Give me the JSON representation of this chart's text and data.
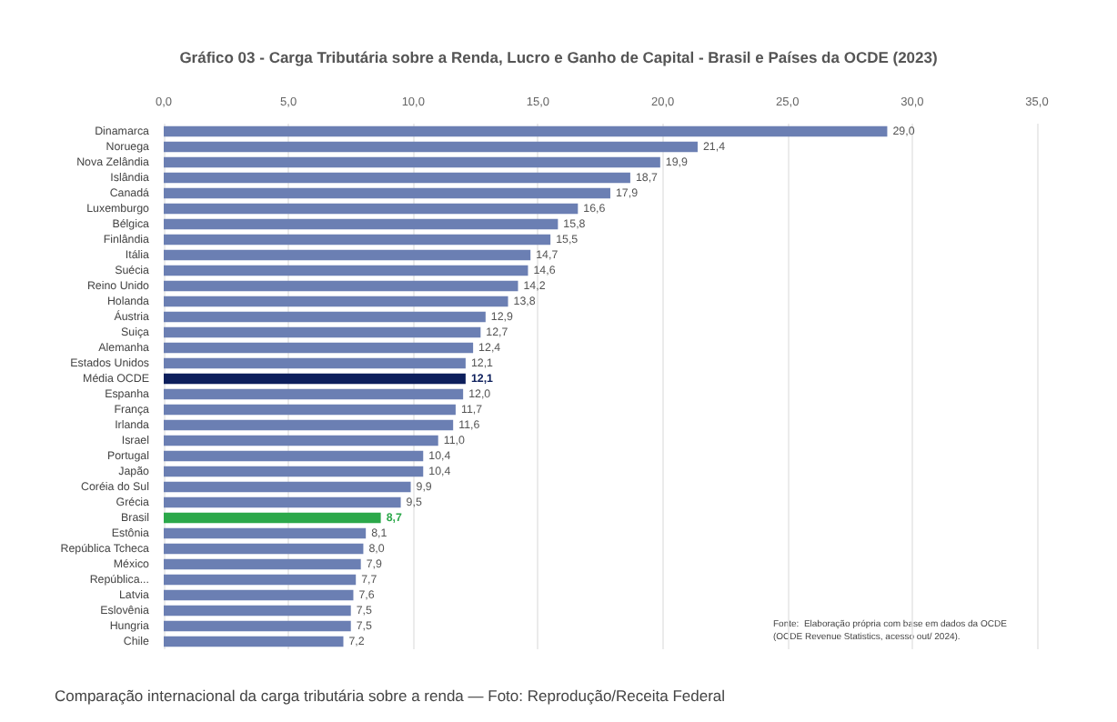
{
  "chart_data": {
    "type": "bar",
    "orientation": "horizontal",
    "title": "Gráfico 03 - Carga Tributária sobre a Renda, Lucro e Ganho de Capital - Brasil e Países da OCDE (2023)",
    "categories": [
      "Dinamarca",
      "Noruega",
      "Nova Zelândia",
      "Islândia",
      "Canadá",
      "Luxemburgo",
      "Bélgica",
      "Finlândia",
      "Itália",
      "Suécia",
      "Reino Unido",
      "Holanda",
      "Áustria",
      "Suiça",
      "Alemanha",
      "Estados Unidos",
      "Média OCDE",
      "Espanha",
      "França",
      "Irlanda",
      "Israel",
      "Portugal",
      "Japão",
      "Coréia do Sul",
      "Grécia",
      "Brasil",
      "Estônia",
      "República Tcheca",
      "México",
      "República...",
      "Latvia",
      "Eslovênia",
      "Hungria",
      "Chile"
    ],
    "values": [
      29.0,
      21.4,
      19.9,
      18.7,
      17.9,
      16.6,
      15.8,
      15.5,
      14.7,
      14.6,
      14.2,
      13.8,
      12.9,
      12.7,
      12.4,
      12.1,
      12.1,
      12.0,
      11.7,
      11.6,
      11.0,
      10.4,
      10.4,
      9.9,
      9.5,
      8.7,
      8.1,
      8.0,
      7.9,
      7.7,
      7.6,
      7.5,
      7.5,
      7.2
    ],
    "colors": [
      "#6b7fb3",
      "#6b7fb3",
      "#6b7fb3",
      "#6b7fb3",
      "#6b7fb3",
      "#6b7fb3",
      "#6b7fb3",
      "#6b7fb3",
      "#6b7fb3",
      "#6b7fb3",
      "#6b7fb3",
      "#6b7fb3",
      "#6b7fb3",
      "#6b7fb3",
      "#6b7fb3",
      "#6b7fb3",
      "#0d1f5c",
      "#6b7fb3",
      "#6b7fb3",
      "#6b7fb3",
      "#6b7fb3",
      "#6b7fb3",
      "#6b7fb3",
      "#6b7fb3",
      "#6b7fb3",
      "#2ba84a",
      "#6b7fb3",
      "#6b7fb3",
      "#6b7fb3",
      "#6b7fb3",
      "#6b7fb3",
      "#6b7fb3",
      "#6b7fb3",
      "#6b7fb3"
    ],
    "xlim": [
      0,
      35
    ],
    "xticks": [
      {
        "value": 0,
        "label": "0,0"
      },
      {
        "value": 5,
        "label": "5,0"
      },
      {
        "value": 10,
        "label": "10,0"
      },
      {
        "value": 15,
        "label": "15,0"
      },
      {
        "value": 20,
        "label": "20,0"
      },
      {
        "value": 25,
        "label": "25,0"
      },
      {
        "value": 30,
        "label": "30,0"
      },
      {
        "value": 35,
        "label": "35,0"
      }
    ],
    "value_labels": [
      "29,0",
      "21,4",
      "19,9",
      "18,7",
      "17,9",
      "16,6",
      "15,8",
      "15,5",
      "14,7",
      "14,6",
      "14,2",
      "13,8",
      "12,9",
      "12,7",
      "12,4",
      "12,1",
      "12,1",
      "12,0",
      "11,7",
      "11,6",
      "11,0",
      "10,4",
      "10,4",
      "9,9",
      "9,5",
      "8,7",
      "8,1",
      "8,0",
      "7,9",
      "7,7",
      "7,6",
      "7,5",
      "7,5",
      "7,2"
    ],
    "grid": "x",
    "annotations": [
      "Fonte:  Elaboração própria com base em dados da OCDE (OCDE Revenue Statistics, acesso out/ 2024).",
      "Comparação internacional da carga tributária sobre a renda — Foto: Reprodução/Receita Federal"
    ]
  }
}
